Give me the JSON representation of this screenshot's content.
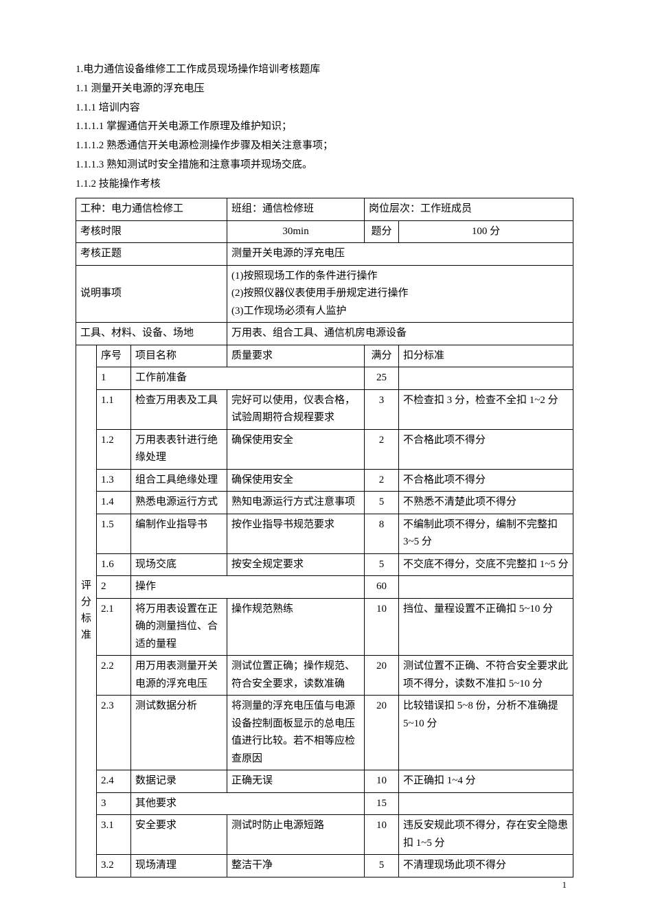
{
  "headings": {
    "h1": "1.电力通信设备维修工工作成员现场操作培训考核题库",
    "h1_1": "1.1 测量开关电源的浮充电压",
    "h1_1_1": "1.1.1 培训内容",
    "h1_1_1_1": "1.1.1.1 掌握通信开关电源工作原理及维护知识；",
    "h1_1_1_2": "1.1.1.2 熟悉通信开关电源检测操作步骤及相关注意事项；",
    "h1_1_1_3": "1.1.1.3 熟知测试时安全措施和注意事项并现场交底。",
    "h1_1_2": "1.1.2 技能操作考核"
  },
  "meta": {
    "workTypeLabel": "工种：电力通信检修工",
    "teamLabel": "班组：通信检修班",
    "postLabel": "岗位层次：工作班成员",
    "timeLimitLabel": "考核时限",
    "timeLimitValue": "30min",
    "scoreLabel": "题分",
    "scoreValue": "100 分",
    "topicLabel": "考核正题",
    "topicValue": "测量开关电源的浮充电压",
    "notesLabel": "说明事项",
    "note1": "(1)按照现场工作的条件进行操作",
    "note2": "(2)按照仪器仪表使用手册规定进行操作",
    "note3": "(3)工作现场必须有人监护",
    "toolsLabel": "工具、材料、设备、场地",
    "toolsValue": "万用表、组合工具、通信机房电源设备"
  },
  "header": {
    "vlabel": "评分标准",
    "seq": "序号",
    "item": "项目名称",
    "req": "质量要求",
    "full": "满分",
    "ded": "扣分标准"
  },
  "r": {
    "s1": {
      "seq": "1",
      "item": "工作前准备",
      "full": "25"
    },
    "s1_1": {
      "seq": "1.1",
      "item": "检查万用表及工具",
      "req": "完好可以使用，仪表合格，试验周期符合规程要求",
      "full": "3",
      "ded": "不检查扣 3 分，检查不全扣 1~2 分"
    },
    "s1_2": {
      "seq": "1.2",
      "item": "万用表表针进行绝缘处理",
      "req": "确保使用安全",
      "full": "2",
      "ded": "不合格此项不得分"
    },
    "s1_3": {
      "seq": "1.3",
      "item": "组合工具绝缘处理",
      "req": "确保使用安全",
      "full": "2",
      "ded": "不合格此项不得分"
    },
    "s1_4": {
      "seq": "1.4",
      "item": "熟悉电源运行方式",
      "req": "熟知电源运行方式注意事项",
      "full": "5",
      "ded": "不熟悉不清楚此项不得分"
    },
    "s1_5": {
      "seq": "1.5",
      "item": "编制作业指导书",
      "req": "按作业指导书规范要求",
      "full": "8",
      "ded": "不编制此项不得分，编制不完整扣 3~5 分"
    },
    "s1_6": {
      "seq": "1.6",
      "item": "现场交底",
      "req": "按安全规定要求",
      "full": "5",
      "ded": "不交底不得分，交底不完整扣 1~5 分"
    },
    "s2": {
      "seq": "2",
      "item": "操作",
      "full": "60"
    },
    "s2_1": {
      "seq": "2.1",
      "item": "将万用表设置在正确的测量挡位、合适的量程",
      "req": "操作规范熟练",
      "full": "10",
      "ded": "挡位、量程设置不正确扣 5~10 分"
    },
    "s2_2": {
      "seq": "2.2",
      "item": "用万用表测量开关电源的浮充电压",
      "req": "测试位置正确；操作规范、符合安全要求，读数准确",
      "full": "20",
      "ded": "测试位置不正确、不符合安全要求此项不得分，读数不准扣 5~10 分"
    },
    "s2_3": {
      "seq": "2.3",
      "item": "测试数据分析",
      "req": "将测量的浮充电压值与电源设备控制面板显示的总电压值进行比较。若不相等应检查原因",
      "full": "20",
      "ded": "比较错误扣 5~8 份，分析不准确提 5~10 分"
    },
    "s2_4": {
      "seq": "2.4",
      "item": "数据记录",
      "req": "正确无误",
      "full": "10",
      "ded": "不正确扣 1~4 分"
    },
    "s3": {
      "seq": "3",
      "item": "其他要求",
      "full": "15"
    },
    "s3_1": {
      "seq": "3.1",
      "item": "安全要求",
      "req": "测试时防止电源短路",
      "full": "10",
      "ded": "违反安规此项不得分，存在安全隐患扣 1~5 分"
    },
    "s3_2": {
      "seq": "3.2",
      "item": "现场清理",
      "req": "整洁干净",
      "full": "5",
      "ded": "不清理现场此项不得分"
    }
  },
  "pageNum": "1"
}
